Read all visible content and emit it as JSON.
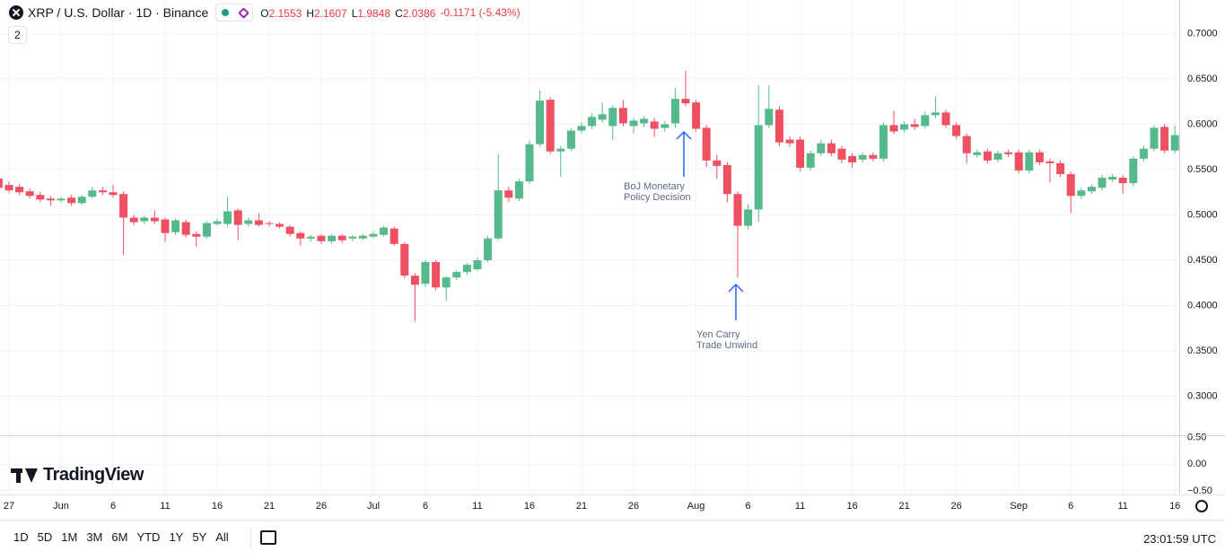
{
  "header": {
    "symbol": "XRP / U.S. Dollar · 1D · Binance",
    "ohlc": [
      {
        "label": "O",
        "value": "2.1553"
      },
      {
        "label": "H",
        "value": "2.1607"
      },
      {
        "label": "L",
        "value": "1.9848"
      },
      {
        "label": "C",
        "value": "2.0386"
      }
    ],
    "change": "-0.1171 (-5.43%)",
    "indicator_count": "2"
  },
  "logo": "TradingView",
  "chart_data": {
    "type": "candlestick",
    "categories": [
      null,
      "27",
      null,
      null,
      null,
      null,
      "Jun",
      null,
      null,
      null,
      null,
      "6",
      null,
      null,
      null,
      null,
      "11",
      null,
      null,
      null,
      null,
      "16",
      null,
      null,
      null,
      null,
      "21",
      null,
      null,
      null,
      null,
      "26",
      null,
      null,
      null,
      null,
      "Jul",
      null,
      null,
      null,
      null,
      "6",
      null,
      null,
      null,
      null,
      "11",
      null,
      null,
      null,
      null,
      "16",
      null,
      null,
      null,
      null,
      "21",
      null,
      null,
      null,
      null,
      "26",
      null,
      null,
      null,
      null,
      null,
      "Aug",
      null,
      null,
      null,
      null,
      "6",
      null,
      null,
      null,
      null,
      "11",
      null,
      null,
      null,
      null,
      "16",
      null,
      null,
      null,
      null,
      "21",
      null,
      null,
      null,
      null,
      "26",
      null,
      null,
      null,
      null,
      null,
      "Sep",
      null,
      null,
      null,
      null,
      "6",
      null,
      null,
      null,
      null,
      "11",
      null,
      null,
      null,
      null,
      "16"
    ],
    "open": [
      0.54,
      0.533,
      0.531,
      0.526,
      0.522,
      0.518,
      0.516,
      0.519,
      0.513,
      0.52,
      0.527,
      0.525,
      0.523,
      0.497,
      0.493,
      0.497,
      0.495,
      0.481,
      0.492,
      0.479,
      0.476,
      0.49,
      0.49,
      0.505,
      0.49,
      0.494,
      0.491,
      0.49,
      0.487,
      0.48,
      0.474,
      0.477,
      0.471,
      0.477,
      0.474,
      0.474,
      0.476,
      0.478,
      0.485,
      0.468,
      0.433,
      0.424,
      0.448,
      0.42,
      0.431,
      0.437,
      0.44,
      0.45,
      0.474,
      0.527,
      0.518,
      0.537,
      0.578,
      0.627,
      0.57,
      0.573,
      0.593,
      0.598,
      0.605,
      0.598,
      0.618,
      0.598,
      0.601,
      0.603,
      0.596,
      0.601,
      0.628,
      0.624,
      0.596,
      0.56,
      0.555,
      0.523,
      0.488,
      0.506,
      0.599,
      0.616,
      0.583,
      0.583,
      0.552,
      0.568,
      0.579,
      0.573,
      0.565,
      0.561,
      0.566,
      0.562,
      0.599,
      0.594,
      0.6,
      0.598,
      0.61,
      0.613,
      0.599,
      0.587,
      0.566,
      0.57,
      0.561,
      0.569,
      0.569,
      0.549,
      0.569,
      0.559,
      0.557,
      0.545,
      0.521,
      0.526,
      0.53,
      0.539,
      0.541,
      0.535,
      0.562,
      0.573,
      0.597,
      0.571
    ],
    "high": [
      0.543,
      0.537,
      0.534,
      0.529,
      0.525,
      0.521,
      0.52,
      0.522,
      0.522,
      0.531,
      0.531,
      0.533,
      0.526,
      0.5,
      0.499,
      0.505,
      0.497,
      0.496,
      0.495,
      0.482,
      0.493,
      0.496,
      0.52,
      0.507,
      0.497,
      0.502,
      0.493,
      0.492,
      0.489,
      0.482,
      0.478,
      0.479,
      0.479,
      0.479,
      0.478,
      0.479,
      0.482,
      0.488,
      0.487,
      0.47,
      0.436,
      0.45,
      0.45,
      0.433,
      0.439,
      0.447,
      0.453,
      0.477,
      0.567,
      0.531,
      0.54,
      0.582,
      0.637,
      0.63,
      0.576,
      0.596,
      0.602,
      0.612,
      0.624,
      0.621,
      0.627,
      0.607,
      0.609,
      0.607,
      0.604,
      0.64,
      0.659,
      0.627,
      0.599,
      0.566,
      0.558,
      0.526,
      0.512,
      0.643,
      0.643,
      0.62,
      0.587,
      0.586,
      0.571,
      0.583,
      0.583,
      0.576,
      0.568,
      0.569,
      0.569,
      0.602,
      0.615,
      0.603,
      0.606,
      0.614,
      0.631,
      0.616,
      0.602,
      0.59,
      0.572,
      0.573,
      0.571,
      0.572,
      0.572,
      0.572,
      0.572,
      0.562,
      0.56,
      0.548,
      0.53,
      0.534,
      0.544,
      0.545,
      0.544,
      0.565,
      0.576,
      0.599,
      0.6,
      0.598
    ],
    "low": [
      0.527,
      0.524,
      0.522,
      0.518,
      0.514,
      0.51,
      0.514,
      0.51,
      0.511,
      0.518,
      0.522,
      0.519,
      0.456,
      0.489,
      0.49,
      0.49,
      0.47,
      0.478,
      0.475,
      0.465,
      0.474,
      0.488,
      0.487,
      0.472,
      0.487,
      0.487,
      0.487,
      0.485,
      0.476,
      0.466,
      0.471,
      0.468,
      0.468,
      0.469,
      0.471,
      0.472,
      0.474,
      0.476,
      0.466,
      0.43,
      0.383,
      0.42,
      0.417,
      0.405,
      0.428,
      0.434,
      0.438,
      0.448,
      0.472,
      0.514,
      0.515,
      0.534,
      0.575,
      0.567,
      0.542,
      0.57,
      0.59,
      0.595,
      0.602,
      0.583,
      0.598,
      0.59,
      0.597,
      0.586,
      0.592,
      0.596,
      0.62,
      0.592,
      0.553,
      0.54,
      0.514,
      0.431,
      0.484,
      0.492,
      0.596,
      0.576,
      0.575,
      0.548,
      0.549,
      0.565,
      0.565,
      0.557,
      0.552,
      0.558,
      0.559,
      0.559,
      0.589,
      0.591,
      0.594,
      0.595,
      0.607,
      0.596,
      0.584,
      0.557,
      0.563,
      0.557,
      0.558,
      0.564,
      0.546,
      0.546,
      0.555,
      0.536,
      0.542,
      0.502,
      0.518,
      0.523,
      0.527,
      0.536,
      0.523,
      0.532,
      0.559,
      0.57,
      0.568,
      0.568
    ],
    "close": [
      0.53,
      0.527,
      0.525,
      0.521,
      0.517,
      0.516,
      0.518,
      0.513,
      0.52,
      0.527,
      0.525,
      0.522,
      0.497,
      0.492,
      0.497,
      0.493,
      0.48,
      0.494,
      0.478,
      0.476,
      0.491,
      0.493,
      0.504,
      0.489,
      0.494,
      0.489,
      0.49,
      0.487,
      0.479,
      0.474,
      0.476,
      0.471,
      0.477,
      0.472,
      0.476,
      0.477,
      0.479,
      0.486,
      0.468,
      0.433,
      0.423,
      0.448,
      0.42,
      0.431,
      0.437,
      0.445,
      0.45,
      0.474,
      0.527,
      0.519,
      0.537,
      0.578,
      0.626,
      0.57,
      0.573,
      0.593,
      0.598,
      0.608,
      0.611,
      0.618,
      0.601,
      0.604,
      0.606,
      0.595,
      0.6,
      0.628,
      0.623,
      0.595,
      0.56,
      0.554,
      0.523,
      0.488,
      0.506,
      0.599,
      0.617,
      0.58,
      0.579,
      0.552,
      0.568,
      0.579,
      0.568,
      0.561,
      0.558,
      0.566,
      0.562,
      0.599,
      0.592,
      0.6,
      0.597,
      0.61,
      0.613,
      0.599,
      0.587,
      0.568,
      0.569,
      0.56,
      0.568,
      0.567,
      0.549,
      0.569,
      0.558,
      0.557,
      0.545,
      0.521,
      0.527,
      0.531,
      0.541,
      0.542,
      0.535,
      0.562,
      0.573,
      0.596,
      0.571,
      0.588
    ],
    "up_color": "#55b98b",
    "down_color": "#ee5062",
    "ylim": [
      0.257,
      0.737
    ],
    "yticks": [
      {
        "value": 0.3,
        "label": "0.3000"
      },
      {
        "value": 0.35,
        "label": "0.3500"
      },
      {
        "value": 0.4,
        "label": "0.4000"
      },
      {
        "value": 0.45,
        "label": "0.4500"
      },
      {
        "value": 0.5,
        "label": "0.5000"
      },
      {
        "value": 0.55,
        "label": "0.5500"
      },
      {
        "value": 0.6,
        "label": "0.6000"
      },
      {
        "value": 0.65,
        "label": "0.6500"
      },
      {
        "value": 0.7,
        "label": "0.7000"
      }
    ],
    "grid": true,
    "annotations": [
      {
        "lines": [
          "BoJ Monetary",
          "Policy Decision"
        ],
        "color": "#2962ff"
      },
      {
        "lines": [
          "Yen Carry",
          "Trade Unwind"
        ],
        "color": "#2962ff"
      }
    ],
    "lower_pane": {
      "ylim": [
        -0.57,
        0.53
      ],
      "yticks": [
        {
          "value": 0.5,
          "label": "0.50"
        },
        {
          "value": 0,
          "label": "0.00"
        },
        {
          "value": -0.5,
          "label": "−0.50"
        }
      ]
    }
  },
  "toolbar": {
    "timeframes": [
      "1D",
      "5D",
      "1M",
      "3M",
      "6M",
      "YTD",
      "1Y",
      "5Y",
      "All"
    ],
    "clock": "23:01:59 UTC"
  }
}
